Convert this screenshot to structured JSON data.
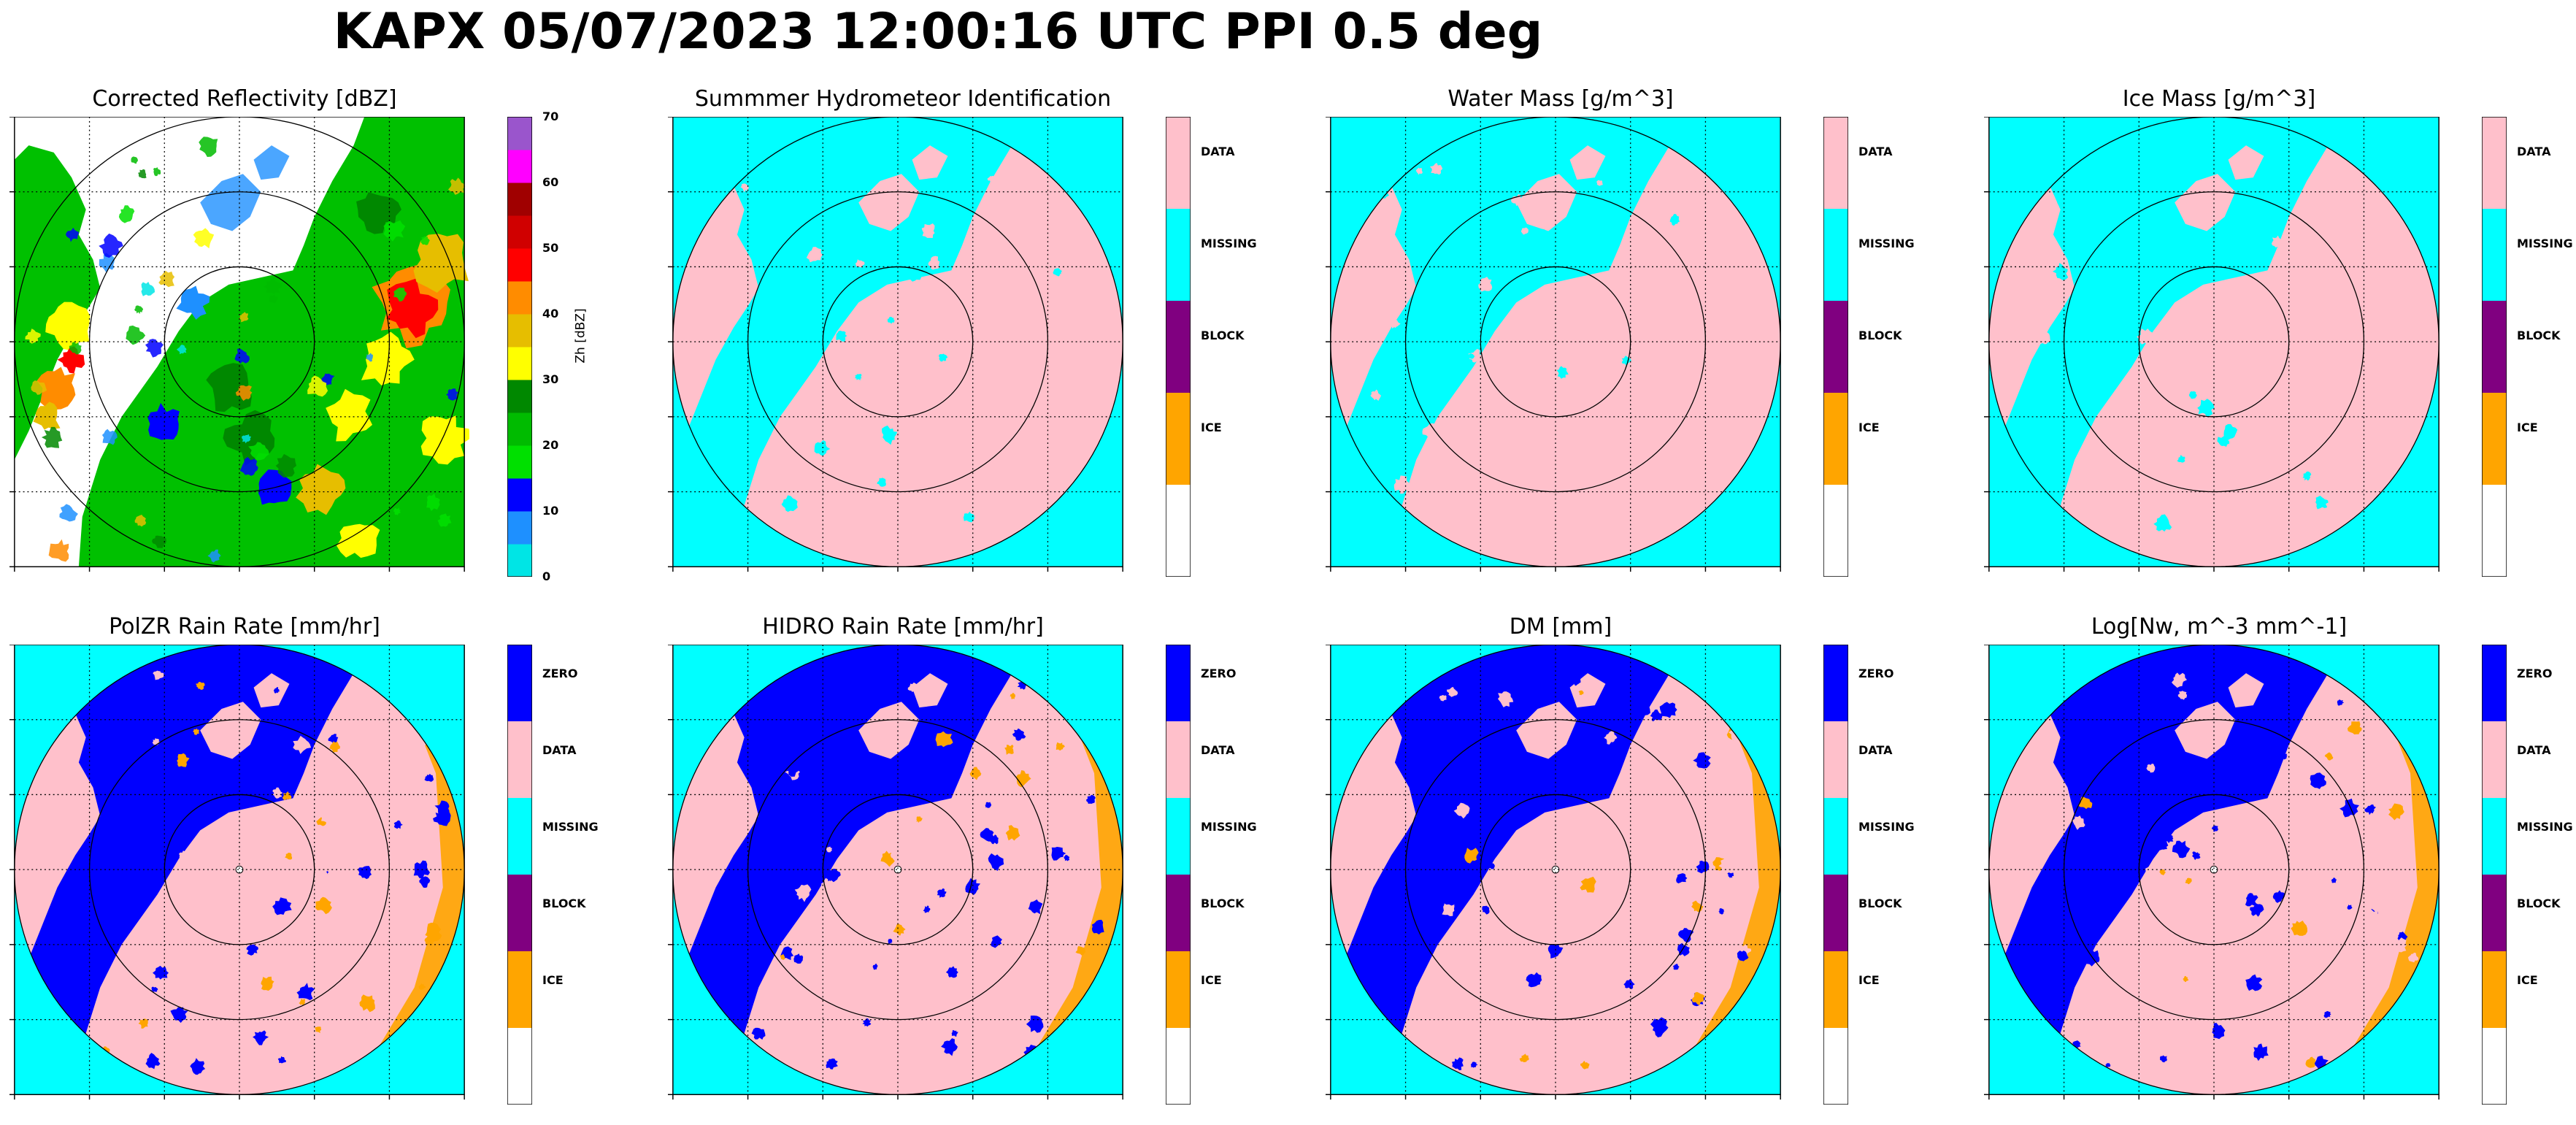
{
  "title": "KAPX 05/07/2023 12:00:16 UTC PPI 0.5 deg",
  "colors": {
    "reflectivity_scale": [
      "#00e5e5",
      "#1e90ff",
      "#0000ff",
      "#00e000",
      "#00bb00",
      "#008800",
      "#ffff00",
      "#e6be00",
      "#ff8c00",
      "#ff0000",
      "#d00000",
      "#a00000",
      "#ff00ff",
      "#9a55cc"
    ],
    "category": {
      "ZERO": "#0000ff",
      "DATA": "#ffc0cb",
      "MISSING": "#00ffff",
      "BLOCK": "#800080",
      "ICE": "#ffa500",
      "NONE": "#ffffff"
    }
  },
  "chart_data": [
    {
      "type": "heatmap",
      "title": "Corrected Reflectivity [dBZ]",
      "colorbar": {
        "label": "Zh [dBZ]",
        "ticks": [
          "0",
          "10",
          "20",
          "30",
          "40",
          "50",
          "60",
          "70"
        ],
        "range": [
          0,
          70
        ]
      }
    },
    {
      "type": "heatmap",
      "title": "Summmer Hydrometeor Identification",
      "colorbar": {
        "labels": [
          "DATA",
          "MISSING",
          "BLOCK",
          "ICE",
          ""
        ]
      }
    },
    {
      "type": "heatmap",
      "title": "Water Mass [g/m^3]",
      "colorbar": {
        "labels": [
          "DATA",
          "MISSING",
          "BLOCK",
          "ICE",
          ""
        ]
      }
    },
    {
      "type": "heatmap",
      "title": "Ice Mass [g/m^3]",
      "colorbar": {
        "labels": [
          "DATA",
          "MISSING",
          "BLOCK",
          "ICE",
          ""
        ]
      }
    },
    {
      "type": "heatmap",
      "title": "PolZR Rain Rate [mm/hr]",
      "colorbar": {
        "labels": [
          "ZERO",
          "DATA",
          "MISSING",
          "BLOCK",
          "ICE",
          ""
        ]
      }
    },
    {
      "type": "heatmap",
      "title": "HIDRO Rain Rate [mm/hr]",
      "colorbar": {
        "labels": [
          "ZERO",
          "DATA",
          "MISSING",
          "BLOCK",
          "ICE",
          ""
        ]
      }
    },
    {
      "type": "heatmap",
      "title": "DM [mm]",
      "colorbar": {
        "labels": [
          "ZERO",
          "DATA",
          "MISSING",
          "BLOCK",
          "ICE",
          ""
        ]
      }
    },
    {
      "type": "heatmap",
      "title": "Log[Nw, m^-3 mm^-1]",
      "colorbar": {
        "labels": [
          "ZERO",
          "DATA",
          "MISSING",
          "BLOCK",
          "ICE",
          ""
        ]
      }
    }
  ]
}
